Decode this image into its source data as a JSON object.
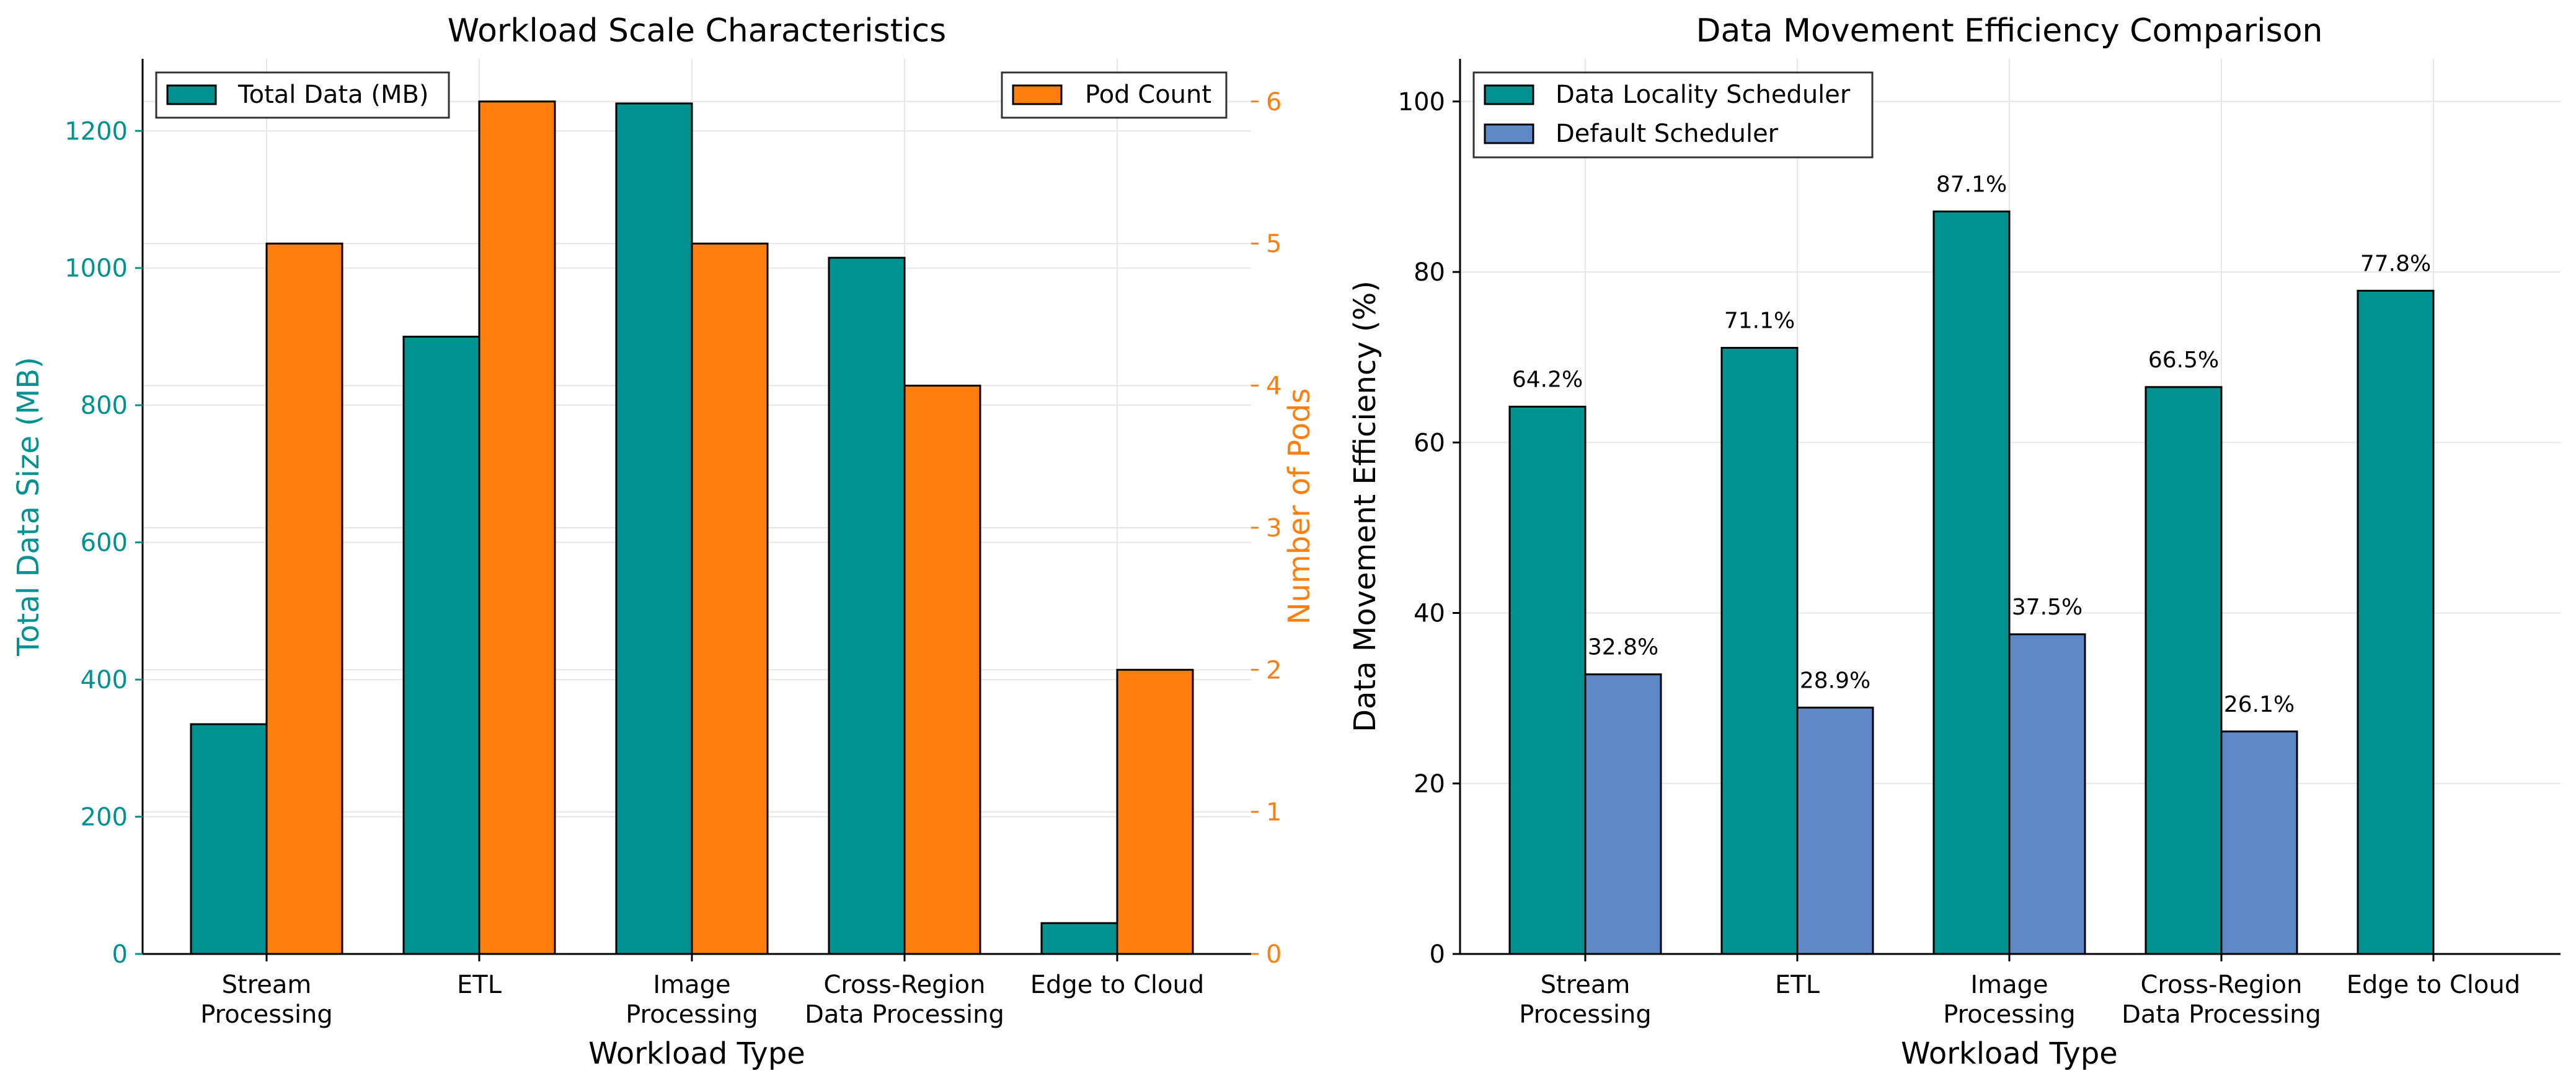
{
  "colors": {
    "teal": "#009191",
    "orange": "#ff7f0e",
    "blue": "#5f88c6",
    "axis": "#000000",
    "grid": "#e6e6e6"
  },
  "chart_data": [
    {
      "type": "bar",
      "title": "Workload Scale Characteristics",
      "xlabel": "Workload Type",
      "ylabel": "Total Data Size (MB)",
      "ylabel_right": "Number of Pods",
      "categories": [
        "Stream\nProcessing",
        "ETL",
        "Image\nProcessing",
        "Cross-Region\nData Processing",
        "Edge to Cloud"
      ],
      "ylim": [
        0,
        1305
      ],
      "ylim_right": [
        0,
        6.3
      ],
      "yticks": [
        0,
        200,
        400,
        600,
        800,
        1000,
        1200
      ],
      "yticks_right": [
        0,
        1,
        2,
        3,
        4,
        5,
        6
      ],
      "grid": true,
      "legend_left": {
        "placement": "top-left",
        "label": "Total Data (MB)"
      },
      "legend_right": {
        "placement": "top-right",
        "label": "Pod Count"
      },
      "series": [
        {
          "name": "Total Data (MB)",
          "axis": "left",
          "color_key": "teal",
          "values": [
            335,
            900,
            1240,
            1015,
            45
          ]
        },
        {
          "name": "Pod Count",
          "axis": "right",
          "color_key": "orange",
          "values": [
            5,
            6,
            5,
            4,
            2
          ]
        }
      ]
    },
    {
      "type": "bar",
      "title": "Data Movement Efficiency Comparison",
      "xlabel": "Workload Type",
      "ylabel": "Data Movement Efficiency (%)",
      "categories": [
        "Stream\nProcessing",
        "ETL",
        "Image\nProcessing",
        "Cross-Region\nData Processing",
        "Edge to Cloud"
      ],
      "ylim": [
        0,
        105
      ],
      "yticks": [
        0,
        20,
        40,
        60,
        80,
        100
      ],
      "grid": true,
      "legend": {
        "placement": "top-left"
      },
      "series": [
        {
          "name": "Data Locality Scheduler",
          "color_key": "teal",
          "values": [
            64.2,
            71.1,
            87.1,
            66.5,
            77.8
          ],
          "labels": [
            "64.2%",
            "71.1%",
            "87.1%",
            "66.5%",
            "77.8%"
          ]
        },
        {
          "name": "Default Scheduler",
          "color_key": "blue",
          "values": [
            32.8,
            28.9,
            37.5,
            26.1,
            null
          ],
          "labels": [
            "32.8%",
            "28.9%",
            "37.5%",
            "26.1%",
            null
          ]
        }
      ]
    }
  ]
}
